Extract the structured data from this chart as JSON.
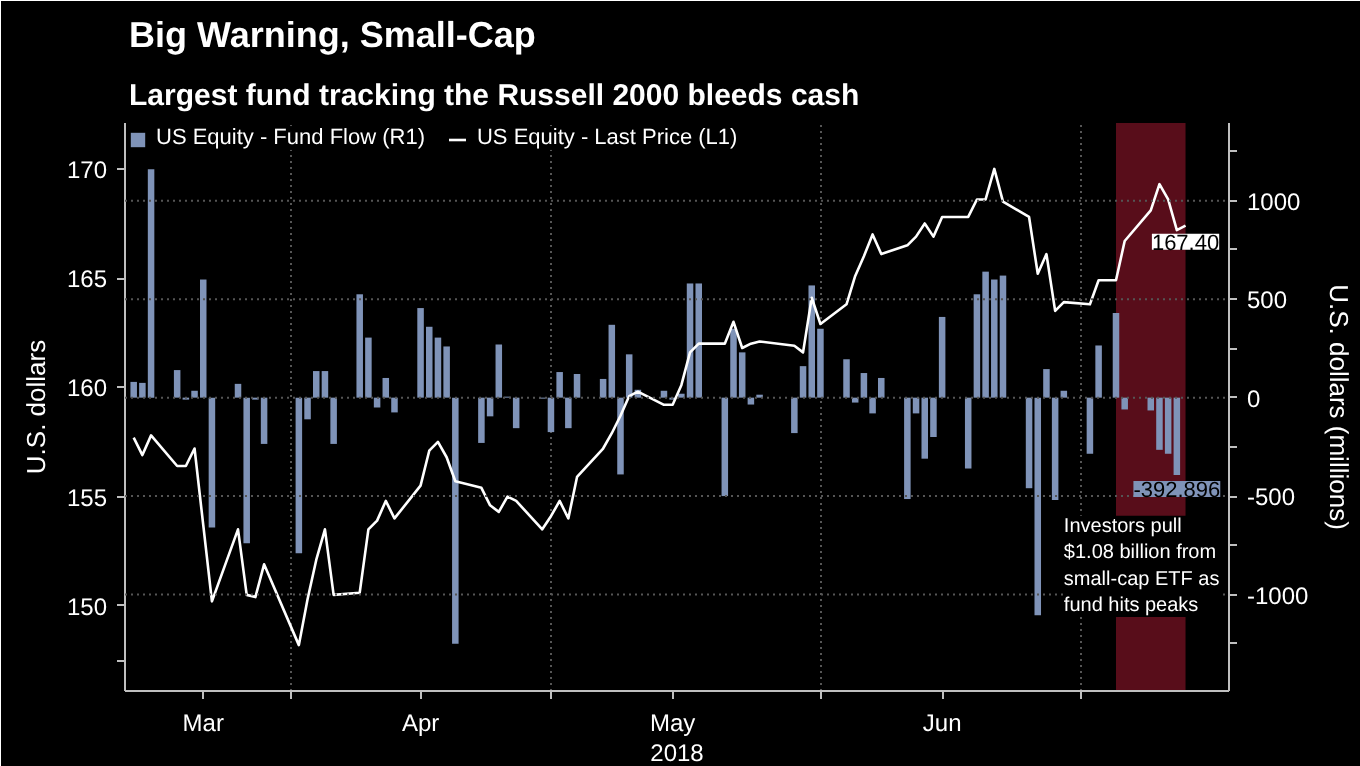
{
  "chart_data": {
    "type": "bar",
    "title": "Big Warning, Small-Cap",
    "subtitle": "Largest fund tracking the Russell 2000 bleeds cash",
    "xlabel": "2018",
    "ylabel": "U.S. dollars",
    "y2label": "U.S. dollars (millions)",
    "x": [
      "2018-03-14",
      "2018-03-15",
      "2018-03-16",
      "2018-03-19",
      "2018-03-20",
      "2018-03-21",
      "2018-03-22",
      "2018-03-23",
      "2018-03-26",
      "2018-03-27",
      "2018-03-28",
      "2018-03-29",
      "2018-04-02",
      "2018-04-03",
      "2018-04-04",
      "2018-04-05",
      "2018-04-06",
      "2018-04-09",
      "2018-04-10",
      "2018-04-11",
      "2018-04-12",
      "2018-04-13",
      "2018-04-16",
      "2018-04-17",
      "2018-04-18",
      "2018-04-19",
      "2018-04-20",
      "2018-04-23",
      "2018-04-24",
      "2018-04-25",
      "2018-04-26",
      "2018-04-27",
      "2018-04-30",
      "2018-05-01",
      "2018-05-02",
      "2018-05-03",
      "2018-05-04",
      "2018-05-07",
      "2018-05-08",
      "2018-05-09",
      "2018-05-10",
      "2018-05-11",
      "2018-05-14",
      "2018-05-15",
      "2018-05-16",
      "2018-05-17",
      "2018-05-18",
      "2018-05-21",
      "2018-05-22",
      "2018-05-23",
      "2018-05-24",
      "2018-05-25",
      "2018-05-29",
      "2018-05-30",
      "2018-05-31",
      "2018-06-01",
      "2018-06-04",
      "2018-06-05",
      "2018-06-06",
      "2018-06-07",
      "2018-06-08",
      "2018-06-11",
      "2018-06-12",
      "2018-06-13",
      "2018-06-14",
      "2018-06-15",
      "2018-06-18",
      "2018-06-19",
      "2018-06-20",
      "2018-06-21",
      "2018-06-22",
      "2018-06-25",
      "2018-06-26",
      "2018-06-27",
      "2018-06-28",
      "2018-06-29",
      "2018-07-02",
      "2018-07-03",
      "2018-07-05",
      "2018-07-06",
      "2018-07-09",
      "2018-07-10",
      "2018-07-11",
      "2018-07-12",
      "2018-07-13"
    ],
    "series": [
      {
        "name": "US Equity - Fund Flow (R1)",
        "axis": "y2",
        "color": "#7f93b8",
        "values": [
          80,
          75,
          1160,
          140,
          -10,
          35,
          600,
          -660,
          70,
          -740,
          -10,
          -235,
          -790,
          -110,
          135,
          135,
          -235,
          525,
          305,
          -50,
          100,
          -75,
          455,
          360,
          305,
          260,
          -1250,
          -230,
          -95,
          270,
          5,
          -155,
          -5,
          -175,
          130,
          -155,
          120,
          95,
          370,
          -390,
          220,
          40,
          35,
          -10,
          20,
          580,
          580,
          -500,
          350,
          230,
          -35,
          15,
          -180,
          160,
          570,
          350,
          195,
          -25,
          125,
          -80,
          100,
          -515,
          -80,
          -310,
          -200,
          410,
          -360,
          525,
          640,
          600,
          620,
          -460,
          -1105,
          145,
          -520,
          35,
          -285,
          265,
          430,
          -60,
          -65,
          -265,
          -285,
          -392.896,
          null
        ],
        "value_labels": [
          null,
          null,
          null,
          null,
          null,
          null,
          null,
          null,
          null,
          null,
          null,
          null,
          null,
          null,
          null,
          null,
          null,
          null,
          null,
          null,
          null,
          null,
          null,
          null,
          null,
          null,
          null,
          null,
          null,
          null,
          null,
          null,
          null,
          null,
          null,
          null,
          null,
          null,
          null,
          null,
          null,
          null,
          null,
          null,
          null,
          null,
          null,
          null,
          null,
          null,
          null,
          null,
          null,
          null,
          null,
          null,
          null,
          null,
          null,
          null,
          null,
          null,
          null,
          null,
          null,
          null,
          null,
          null,
          null,
          null,
          null,
          null,
          null,
          null,
          null,
          null,
          null,
          null,
          null,
          null,
          null,
          null,
          null,
          "-392.896",
          null
        ]
      },
      {
        "name": "US Equity - Last Price (L1)",
        "type": "line",
        "color": "#ffffff",
        "values": [
          157.7,
          156.9,
          157.8,
          156.4,
          156.4,
          157.2,
          153.7,
          150.2,
          153.5,
          150.5,
          150.4,
          151.9,
          148.2,
          150.3,
          152.1,
          153.5,
          150.5,
          150.6,
          153.5,
          153.9,
          154.8,
          154.0,
          155.5,
          157.1,
          157.5,
          156.8,
          155.7,
          155.4,
          154.6,
          154.3,
          155.0,
          154.8,
          153.5,
          154.1,
          154.8,
          154.0,
          155.9,
          157.2,
          157.9,
          158.7,
          159.6,
          159.8,
          159.2,
          159.2,
          160.1,
          161.6,
          162.0,
          162.0,
          163.0,
          161.8,
          162.0,
          162.1,
          161.9,
          161.6,
          164.1,
          162.9,
          163.8,
          165.1,
          166.0,
          167.0,
          166.1,
          166.5,
          166.9,
          167.5,
          166.9,
          167.8,
          167.8,
          168.6,
          168.6,
          170.0,
          168.5,
          167.8,
          165.2,
          166.1,
          163.5,
          163.9,
          163.8,
          164.9,
          164.9,
          166.7,
          168.1,
          169.3,
          168.6,
          167.2,
          167.4
        ],
        "value_labels": [
          null,
          null,
          null,
          null,
          null,
          null,
          null,
          null,
          null,
          null,
          null,
          null,
          null,
          null,
          null,
          null,
          null,
          null,
          null,
          null,
          null,
          null,
          null,
          null,
          null,
          null,
          null,
          null,
          null,
          null,
          null,
          null,
          null,
          null,
          null,
          null,
          null,
          null,
          null,
          null,
          null,
          null,
          null,
          null,
          null,
          null,
          null,
          null,
          null,
          null,
          null,
          null,
          null,
          null,
          null,
          null,
          null,
          null,
          null,
          null,
          null,
          null,
          null,
          null,
          null,
          null,
          null,
          null,
          null,
          null,
          null,
          null,
          null,
          null,
          null,
          null,
          null,
          null,
          null,
          null,
          null,
          null,
          null,
          null,
          "167.40"
        ]
      }
    ],
    "xlim": [
      "2018-03-13",
      "2018-07-18"
    ],
    "xticks": [
      {
        "value": "2018-03-22",
        "label": "Mar"
      },
      {
        "value": "2018-04-01",
        "label": null
      },
      {
        "value": "2018-04-16",
        "label": "Apr"
      },
      {
        "value": "2018-05-01",
        "label": null
      },
      {
        "value": "2018-05-15",
        "label": "May"
      },
      {
        "value": "2018-06-01",
        "label": null
      },
      {
        "value": "2018-06-15",
        "label": "Jun"
      },
      {
        "value": "2018-07-01",
        "label": null
      }
    ],
    "ylim": [
      146.1,
      172.1
    ],
    "yticks": [
      {
        "value": 147.5,
        "label": null
      },
      150,
      155,
      160,
      165,
      170
    ],
    "y2lim": [
      -1490,
      1395
    ],
    "y2ticks": [
      {
        "value": -1250,
        "label": null
      },
      -1000,
      {
        "value": -750,
        "label": null
      },
      -500,
      {
        "value": -250,
        "label": null
      },
      0,
      {
        "value": 250,
        "label": null
      },
      500,
      {
        "value": 750,
        "label": null
      },
      1000,
      {
        "value": 1250,
        "label": null
      }
    ],
    "bands": [
      {
        "axis": "x",
        "from": "2018-07-05",
        "to": "2018-07-13",
        "color": "#a01830"
      }
    ],
    "annotations": [
      "Investors pull\n$1.08 billion from\nsmall-cap ETF as\nfund hits peaks"
    ],
    "grid": true,
    "legend": "top left"
  }
}
